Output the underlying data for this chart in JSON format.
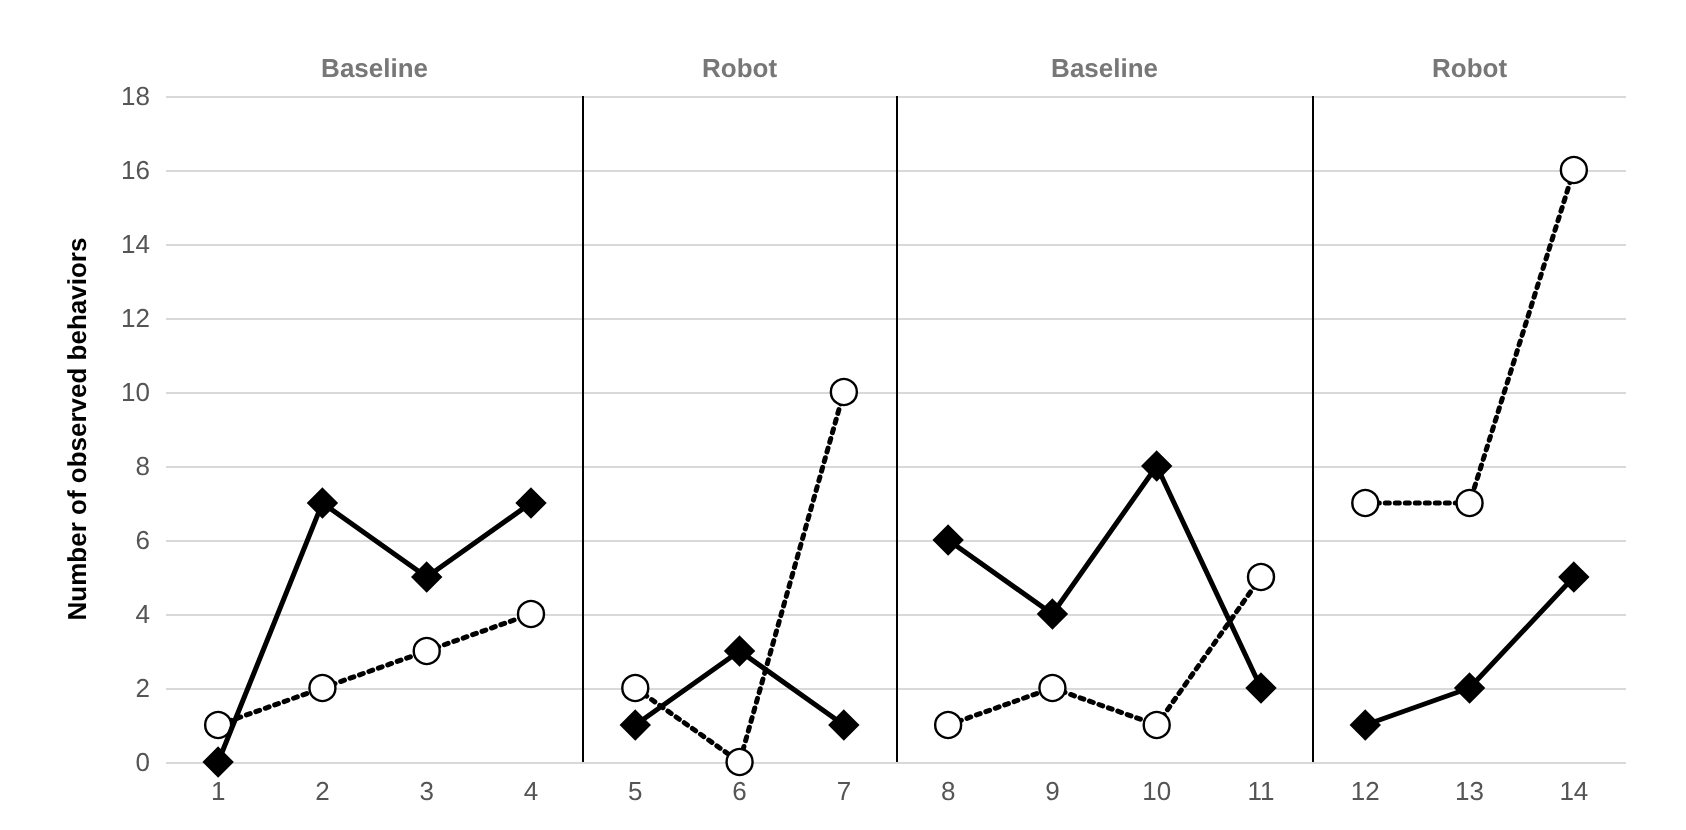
{
  "chart_data": {
    "type": "line",
    "ylabel": "Number of observed behaviors",
    "xlim": [
      0.5,
      14.5
    ],
    "xticks": [
      1,
      2,
      3,
      4,
      5,
      6,
      7,
      8,
      9,
      10,
      11,
      12,
      13,
      14
    ],
    "ylim": [
      0,
      18
    ],
    "yticks": [
      0,
      2,
      4,
      6,
      8,
      10,
      12,
      14,
      16,
      18
    ],
    "grid": "y",
    "series": [
      {
        "color": "#000000",
        "marker": "diamond",
        "line_style": "solid",
        "x": [
          1,
          2,
          3,
          4
        ],
        "values": [
          0,
          7,
          5,
          7
        ]
      },
      {
        "color": "#000000",
        "marker": "diamond",
        "line_style": "solid",
        "x": [
          5,
          6,
          7
        ],
        "values": [
          1,
          3,
          1
        ]
      },
      {
        "color": "#000000",
        "marker": "diamond",
        "line_style": "solid",
        "x": [
          8,
          9,
          10,
          11
        ],
        "values": [
          6,
          4,
          8,
          2
        ]
      },
      {
        "color": "#000000",
        "marker": "diamond",
        "line_style": "solid",
        "x": [
          12,
          13,
          14
        ],
        "values": [
          1,
          2,
          5
        ]
      },
      {
        "color": "#000000",
        "marker": "circle",
        "line_style": "dotted",
        "x": [
          1,
          2,
          3,
          4
        ],
        "values": [
          1,
          2,
          3,
          4
        ]
      },
      {
        "color": "#000000",
        "marker": "circle",
        "line_style": "dotted",
        "x": [
          5,
          6,
          7
        ],
        "values": [
          2,
          0,
          10
        ]
      },
      {
        "color": "#000000",
        "marker": "circle",
        "line_style": "dotted",
        "x": [
          8,
          9,
          10,
          11
        ],
        "values": [
          1,
          2,
          1,
          5
        ]
      },
      {
        "color": "#000000",
        "marker": "circle",
        "line_style": "dotted",
        "x": [
          12,
          13,
          14
        ],
        "values": [
          7,
          7,
          16
        ]
      }
    ],
    "ref_lines": [
      {
        "axis": "x",
        "value": 4.5,
        "color": "#000000"
      },
      {
        "axis": "x",
        "value": 7.5,
        "color": "#000000"
      },
      {
        "axis": "x",
        "value": 11.5,
        "color": "#000000"
      }
    ],
    "annotations": [
      "Baseline",
      "Robot",
      "Baseline",
      "Robot"
    ]
  }
}
